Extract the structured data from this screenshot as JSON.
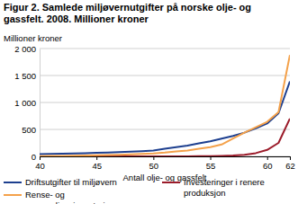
{
  "chart_data": {
    "type": "line",
    "title": "Figur 2. Samlede miljøvernutgifter på norske olje- og gassfelt. 2008. Millioner kroner",
    "y_label": "Millioner kroner",
    "x_label": "Antall olje- og gassfelt",
    "x": [
      40,
      41,
      42,
      43,
      44,
      45,
      46,
      47,
      48,
      49,
      50,
      51,
      52,
      53,
      54,
      55,
      56,
      57,
      58,
      59,
      60,
      61,
      62
    ],
    "series": [
      {
        "name": "Driftsutgifter til miljøvern",
        "color": "#1d3f8f",
        "values": [
          40,
          45,
          50,
          55,
          60,
          65,
          72,
          80,
          88,
          97,
          110,
          140,
          170,
          200,
          240,
          280,
          330,
          380,
          440,
          520,
          610,
          800,
          1390
        ]
      },
      {
        "name": "Investeringer i renere produksjon",
        "color": "#9b1b2a",
        "values": [
          0,
          0,
          0,
          0,
          0,
          0,
          0,
          0,
          0,
          0,
          0,
          1,
          1,
          2,
          3,
          5,
          8,
          15,
          30,
          60,
          120,
          250,
          700
        ]
      },
      {
        "name": "Rense- og oppsamlingsinvesteringer",
        "color": "#f4a14a",
        "values": [
          5,
          7,
          10,
          12,
          15,
          20,
          25,
          30,
          38,
          45,
          55,
          70,
          90,
          110,
          140,
          170,
          220,
          330,
          440,
          540,
          640,
          820,
          1880
        ]
      }
    ],
    "xlim": [
      40,
      62
    ],
    "xticks": [
      40,
      45,
      50,
      55,
      60,
      62
    ],
    "ylim": [
      0,
      2000
    ],
    "yticks": [
      0,
      500,
      {
        "value": 1000,
        "label": "1 000"
      },
      {
        "value": 1500,
        "label": "1 500"
      },
      {
        "value": 2000,
        "label": "2 000"
      }
    ],
    "grid": true
  }
}
